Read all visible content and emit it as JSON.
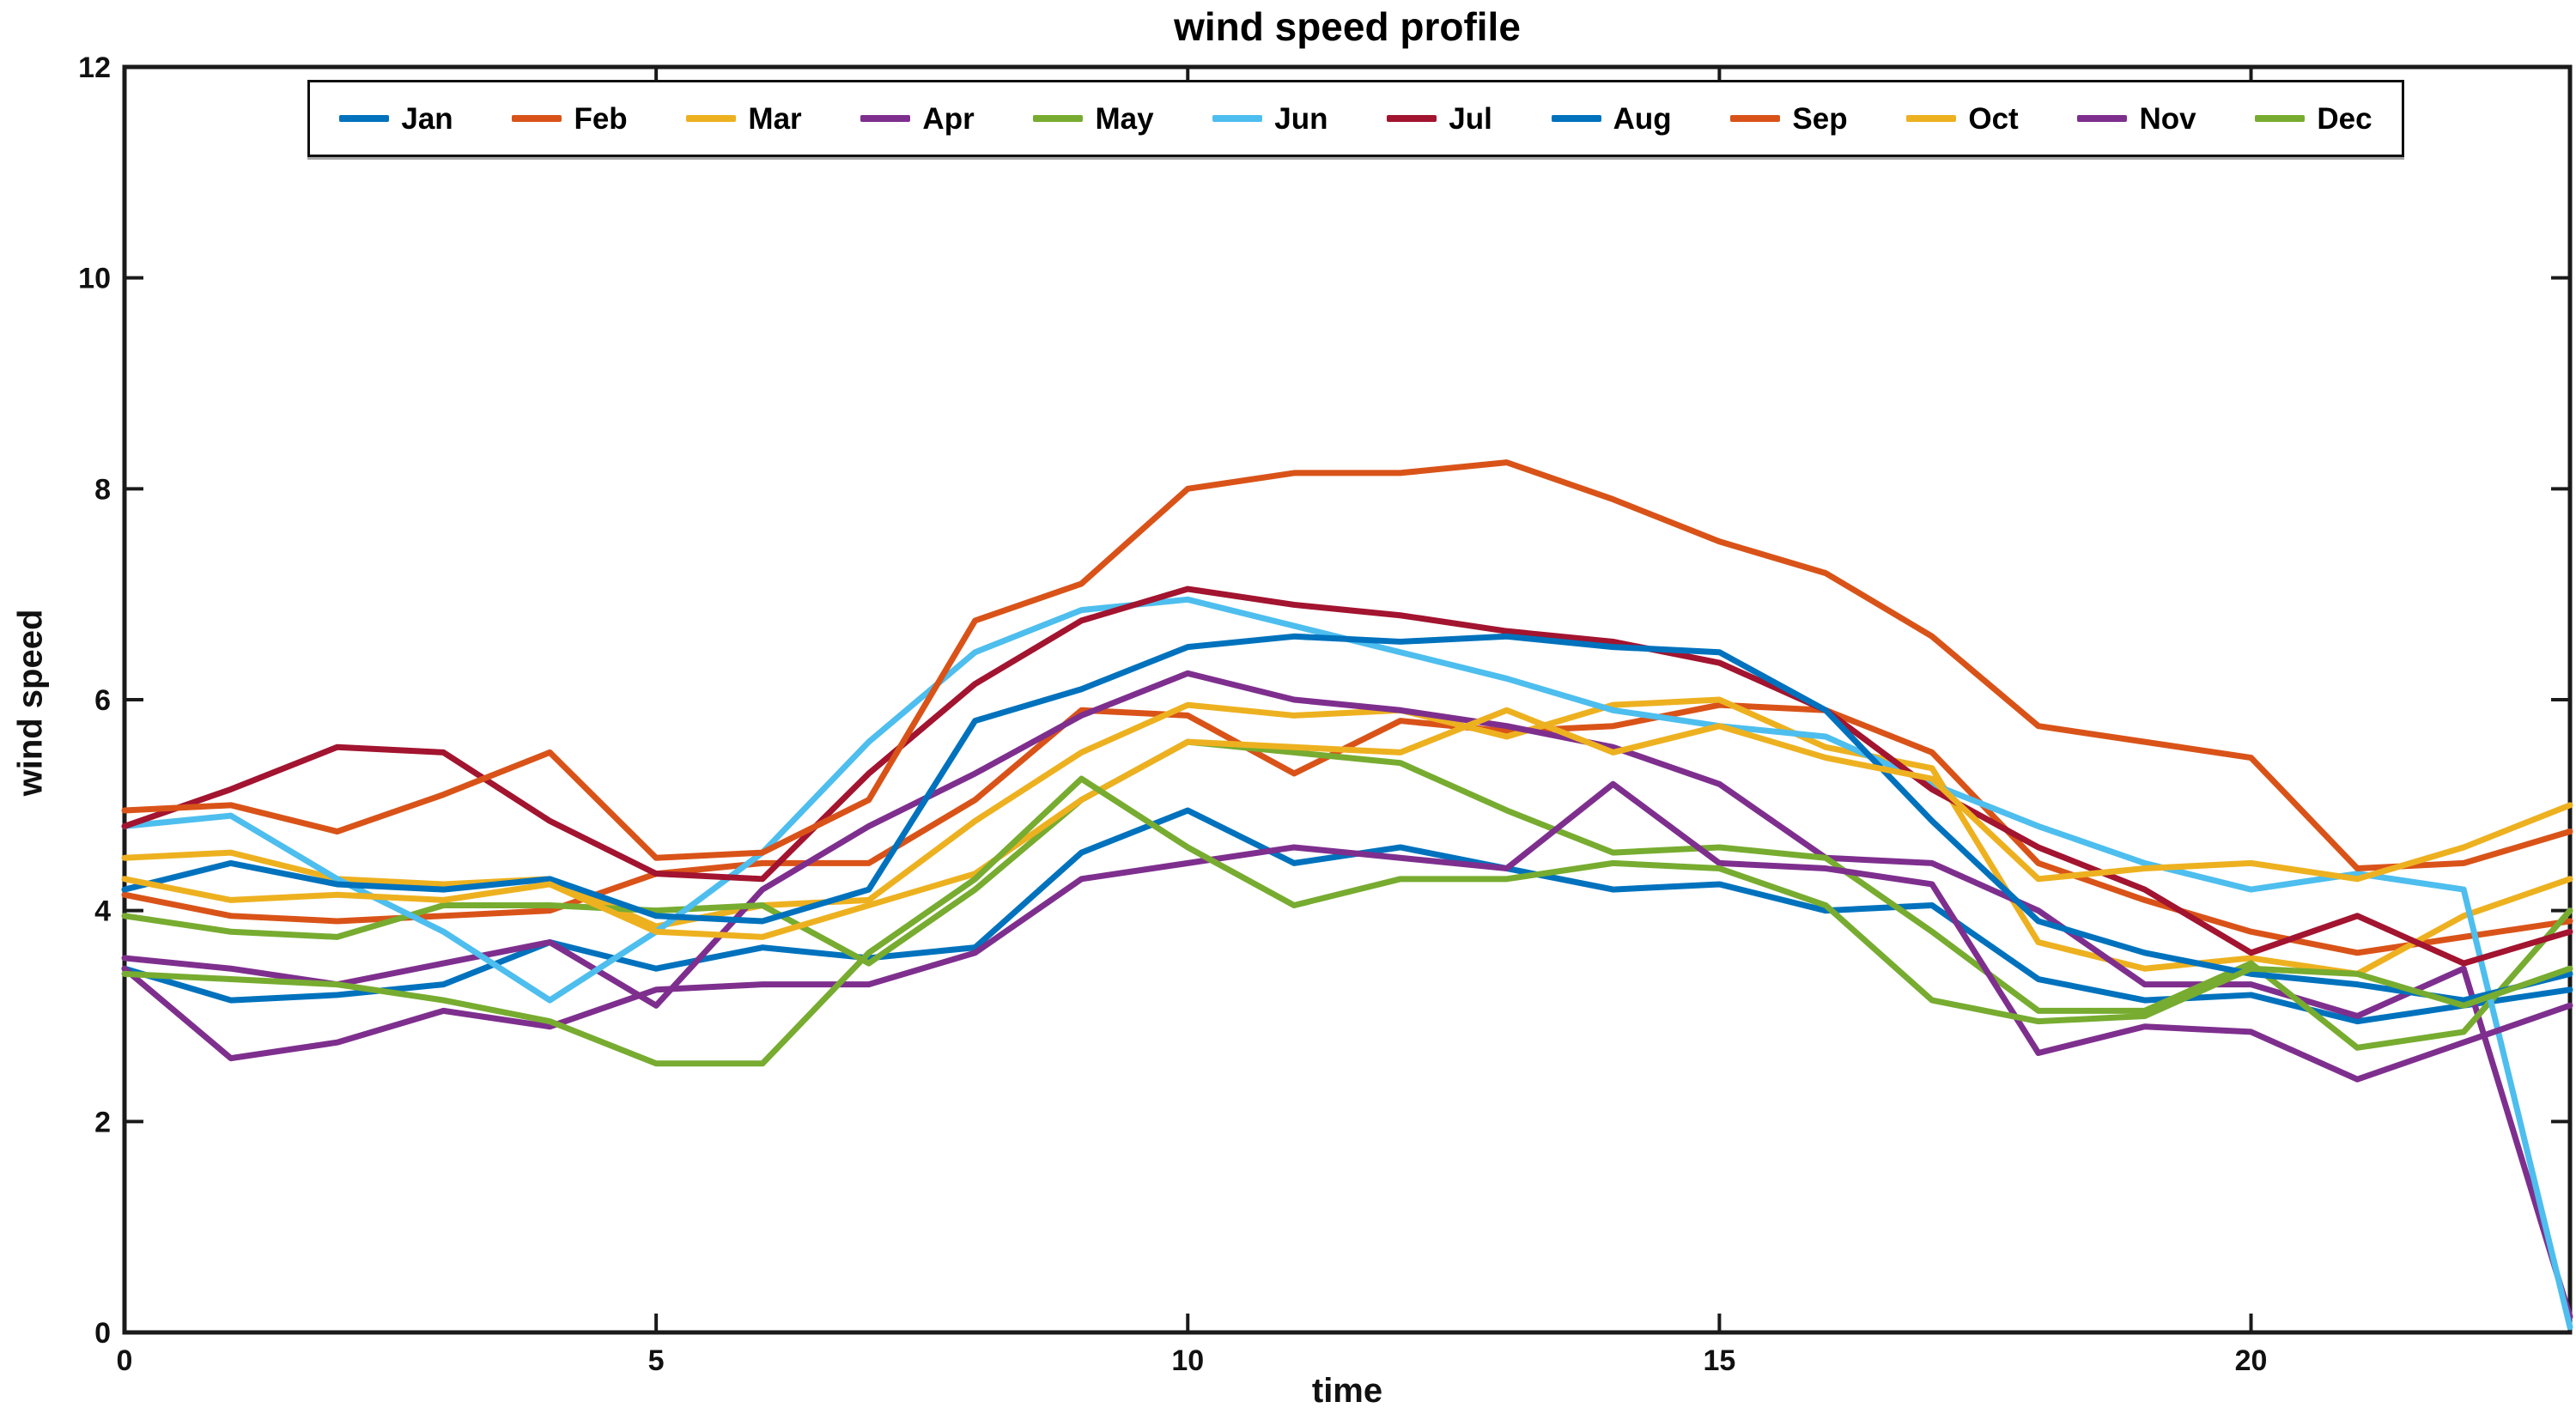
{
  "title": "wind speed profile",
  "chart_data": {
    "type": "line",
    "title": "wind speed profile",
    "xlabel": "time",
    "ylabel": "wind speed",
    "xlim": [
      0,
      23
    ],
    "ylim": [
      0,
      12
    ],
    "xticks": [
      0,
      5,
      10,
      15,
      20
    ],
    "yticks": [
      0,
      2,
      4,
      6,
      8,
      10,
      12
    ],
    "grid": false,
    "legend_position": "top-center-inside",
    "axis_color": "#1a1a1a",
    "x": [
      0,
      1,
      2,
      3,
      4,
      5,
      6,
      7,
      8,
      9,
      10,
      11,
      12,
      13,
      14,
      15,
      16,
      17,
      18,
      19,
      20,
      21,
      22,
      23
    ],
    "series": [
      {
        "name": "Jan",
        "color": "#0072BD",
        "values": [
          3.45,
          3.15,
          3.2,
          3.3,
          3.7,
          3.45,
          3.65,
          3.55,
          3.65,
          4.55,
          4.95,
          4.45,
          4.6,
          4.4,
          4.2,
          4.25,
          4.0,
          4.05,
          3.35,
          3.15,
          3.2,
          2.95,
          3.1,
          3.25
        ]
      },
      {
        "name": "Feb",
        "color": "#D95319",
        "values": [
          4.15,
          3.95,
          3.9,
          3.95,
          4.0,
          4.35,
          4.45,
          4.45,
          5.05,
          5.9,
          5.85,
          5.3,
          5.8,
          5.7,
          5.75,
          5.95,
          5.9,
          5.5,
          4.45,
          4.1,
          3.8,
          3.6,
          3.75,
          3.9
        ]
      },
      {
        "name": "Mar",
        "color": "#EDB120",
        "values": [
          4.5,
          4.55,
          4.3,
          4.25,
          4.3,
          3.85,
          4.05,
          4.1,
          4.85,
          5.5,
          5.95,
          5.85,
          5.9,
          5.65,
          5.95,
          6.0,
          5.55,
          5.35,
          3.7,
          3.45,
          3.55,
          3.4,
          3.95,
          4.3
        ]
      },
      {
        "name": "Apr",
        "color": "#7E2F8E",
        "values": [
          3.55,
          3.45,
          3.3,
          3.5,
          3.7,
          3.1,
          4.2,
          4.8,
          5.3,
          5.85,
          6.25,
          6.0,
          5.9,
          5.75,
          5.55,
          5.2,
          4.5,
          4.45,
          4.0,
          3.3,
          3.3,
          3.0,
          3.45,
          0.15
        ]
      },
      {
        "name": "May",
        "color": "#77AC30",
        "values": [
          3.95,
          3.8,
          3.75,
          4.05,
          4.05,
          4.0,
          4.05,
          3.5,
          4.2,
          5.05,
          5.6,
          5.5,
          5.4,
          4.95,
          4.55,
          4.6,
          4.5,
          3.8,
          3.05,
          3.05,
          3.5,
          2.7,
          2.85,
          4.0
        ]
      },
      {
        "name": "Jun",
        "color": "#4DBEEE",
        "values": [
          4.8,
          4.9,
          4.3,
          3.8,
          3.15,
          3.8,
          4.55,
          5.6,
          6.45,
          6.85,
          6.95,
          6.7,
          6.45,
          6.2,
          5.9,
          5.75,
          5.65,
          5.2,
          4.8,
          4.45,
          4.2,
          4.35,
          4.2,
          0.05
        ]
      },
      {
        "name": "Jul",
        "color": "#A2142F",
        "values": [
          4.8,
          5.15,
          5.55,
          5.5,
          4.85,
          4.35,
          4.3,
          5.3,
          6.15,
          6.75,
          7.05,
          6.9,
          6.8,
          6.65,
          6.55,
          6.35,
          5.9,
          5.15,
          4.6,
          4.2,
          3.6,
          3.95,
          3.5,
          3.8
        ]
      },
      {
        "name": "Aug",
        "color": "#0072BD",
        "values": [
          4.2,
          4.45,
          4.25,
          4.2,
          4.3,
          3.95,
          3.9,
          4.2,
          5.8,
          6.1,
          6.5,
          6.6,
          6.55,
          6.6,
          6.5,
          6.45,
          5.9,
          4.85,
          3.9,
          3.6,
          3.4,
          3.3,
          3.15,
          3.4
        ]
      },
      {
        "name": "Sep",
        "color": "#D95319",
        "values": [
          4.95,
          5.0,
          4.75,
          5.1,
          5.5,
          4.5,
          4.55,
          5.05,
          6.75,
          7.1,
          8.0,
          8.15,
          8.15,
          8.25,
          7.9,
          7.5,
          7.2,
          6.6,
          5.75,
          5.6,
          5.45,
          4.4,
          4.45,
          4.75
        ]
      },
      {
        "name": "Oct",
        "color": "#EDB120",
        "values": [
          4.3,
          4.1,
          4.15,
          4.1,
          4.25,
          3.8,
          3.75,
          4.05,
          4.35,
          5.05,
          5.6,
          5.55,
          5.5,
          5.9,
          5.5,
          5.75,
          5.45,
          5.25,
          4.3,
          4.4,
          4.45,
          4.3,
          4.6,
          5.0
        ]
      },
      {
        "name": "Nov",
        "color": "#7E2F8E",
        "values": [
          3.45,
          2.6,
          2.75,
          3.05,
          2.9,
          3.25,
          3.3,
          3.3,
          3.6,
          4.3,
          4.45,
          4.6,
          4.5,
          4.4,
          5.2,
          4.45,
          4.4,
          4.25,
          2.65,
          2.9,
          2.85,
          2.4,
          2.75,
          3.1
        ]
      },
      {
        "name": "Dec",
        "color": "#77AC30",
        "values": [
          3.4,
          3.35,
          3.3,
          3.15,
          2.95,
          2.55,
          2.55,
          3.6,
          4.3,
          5.25,
          4.6,
          4.05,
          4.3,
          4.3,
          4.45,
          4.4,
          4.05,
          3.15,
          2.95,
          3.0,
          3.45,
          3.4,
          3.1,
          3.45
        ]
      }
    ]
  }
}
